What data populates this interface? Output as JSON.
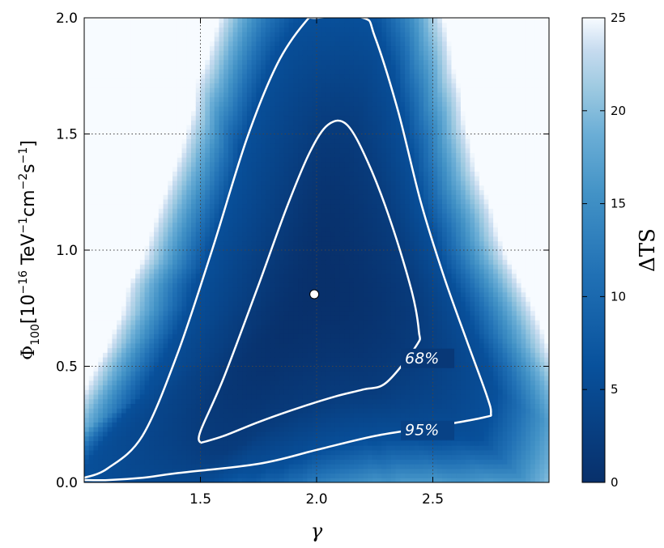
{
  "chart_data": {
    "type": "heatmap",
    "title": "",
    "xlabel": "γ",
    "ylabel": "Φ",
    "ylabel_sub": "100",
    "ylabel_units_parts": [
      "[10",
      "−16",
      " TeV",
      "−1",
      "cm",
      "−2",
      "s",
      "−1",
      "]"
    ],
    "xlim": [
      1.0,
      3.0
    ],
    "ylim": [
      0.0,
      2.0
    ],
    "xticks": [
      1.5,
      2.0,
      2.5
    ],
    "xtick_labels": [
      "1.5",
      "2.0",
      "2.5"
    ],
    "yticks": [
      0.0,
      0.5,
      1.0,
      1.5,
      2.0
    ],
    "ytick_labels": [
      "0.0",
      "0.5",
      "1.0",
      "1.5",
      "2.0"
    ],
    "grid": true,
    "colorbar": {
      "label": "ΔTS",
      "range": [
        0,
        25
      ],
      "ticks": [
        0,
        5,
        10,
        15,
        20,
        25
      ],
      "tick_labels": [
        "0",
        "5",
        "10",
        "15",
        "20",
        "25"
      ],
      "colormap": "Blues_r",
      "color_low": "#08306b",
      "color_high": "#f7fbff"
    },
    "best_fit": {
      "x": 1.99,
      "y": 0.81
    },
    "contours": [
      {
        "label": "68%",
        "label_pos": {
          "x": 2.38,
          "y": 0.52
        },
        "points": [
          [
            1.5,
            0.17
          ],
          [
            1.5,
            0.22
          ],
          [
            1.6,
            0.45
          ],
          [
            1.75,
            0.85
          ],
          [
            1.87,
            1.18
          ],
          [
            1.97,
            1.42
          ],
          [
            2.05,
            1.54
          ],
          [
            2.13,
            1.54
          ],
          [
            2.22,
            1.38
          ],
          [
            2.32,
            1.12
          ],
          [
            2.41,
            0.82
          ],
          [
            2.44,
            0.65
          ],
          [
            2.43,
            0.59
          ],
          [
            2.3,
            0.43
          ],
          [
            2.2,
            0.4
          ],
          [
            2.08,
            0.37
          ],
          [
            1.92,
            0.32
          ],
          [
            1.75,
            0.26
          ],
          [
            1.6,
            0.2
          ],
          [
            1.5,
            0.17
          ]
        ]
      },
      {
        "label": "95%",
        "label_pos": {
          "x": 2.38,
          "y": 0.21
        },
        "points": [
          [
            1.0,
            0.02
          ],
          [
            1.1,
            0.06
          ],
          [
            1.25,
            0.2
          ],
          [
            1.4,
            0.55
          ],
          [
            1.55,
            1.0
          ],
          [
            1.7,
            1.48
          ],
          [
            1.83,
            1.8
          ],
          [
            1.95,
            1.98
          ],
          [
            2.0,
            2.0
          ],
          [
            2.2,
            2.0
          ],
          [
            2.25,
            1.92
          ],
          [
            2.35,
            1.6
          ],
          [
            2.45,
            1.2
          ],
          [
            2.55,
            0.88
          ],
          [
            2.65,
            0.6
          ],
          [
            2.73,
            0.38
          ],
          [
            2.75,
            0.3
          ],
          [
            2.72,
            0.28
          ],
          [
            2.5,
            0.24
          ],
          [
            2.25,
            0.2
          ],
          [
            2.0,
            0.14
          ],
          [
            1.75,
            0.08
          ],
          [
            1.4,
            0.04
          ],
          [
            1.25,
            0.02
          ],
          [
            1.1,
            0.01
          ],
          [
            1.0,
            0.01
          ]
        ]
      }
    ],
    "colors": {
      "contour": "#ffffff",
      "grid": "#444444",
      "marker": "#ffffff"
    }
  }
}
